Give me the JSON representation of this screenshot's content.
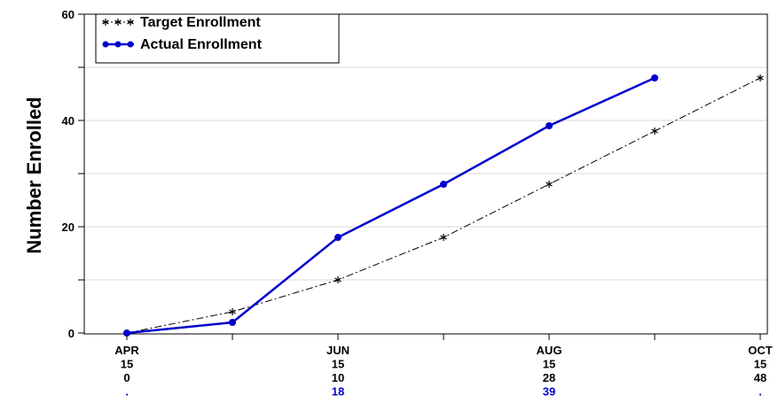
{
  "chart_data": {
    "type": "line",
    "ylabel": "Number Enrolled",
    "xlabel": "",
    "ylim": [
      0,
      60
    ],
    "yticks": [
      0,
      20,
      40,
      60
    ],
    "grid": true,
    "legend_position": "top-left",
    "x_labels": [
      {
        "x": 0,
        "lines": [
          "APR",
          "15",
          "0",
          "."
        ]
      },
      {
        "x": 2,
        "lines": [
          "JUN",
          "15",
          "10",
          "18"
        ]
      },
      {
        "x": 4,
        "lines": [
          "AUG",
          "15",
          "28",
          "39"
        ]
      },
      {
        "x": 6,
        "lines": [
          "OCT",
          "15",
          "48",
          "."
        ]
      }
    ],
    "series": [
      {
        "name": "Target Enrollment",
        "color": "#000000",
        "marker": "star",
        "style": "dash-dot",
        "x": [
          0,
          1,
          2,
          3,
          4,
          5,
          6
        ],
        "values": [
          0,
          4,
          10,
          18,
          28,
          38,
          48
        ]
      },
      {
        "name": "Actual Enrollment",
        "color": "#0000CC",
        "marker": "circle",
        "style": "solid",
        "x": [
          0,
          1,
          2,
          3,
          4,
          5
        ],
        "values": [
          0,
          2,
          18,
          28,
          39,
          48
        ]
      }
    ]
  }
}
